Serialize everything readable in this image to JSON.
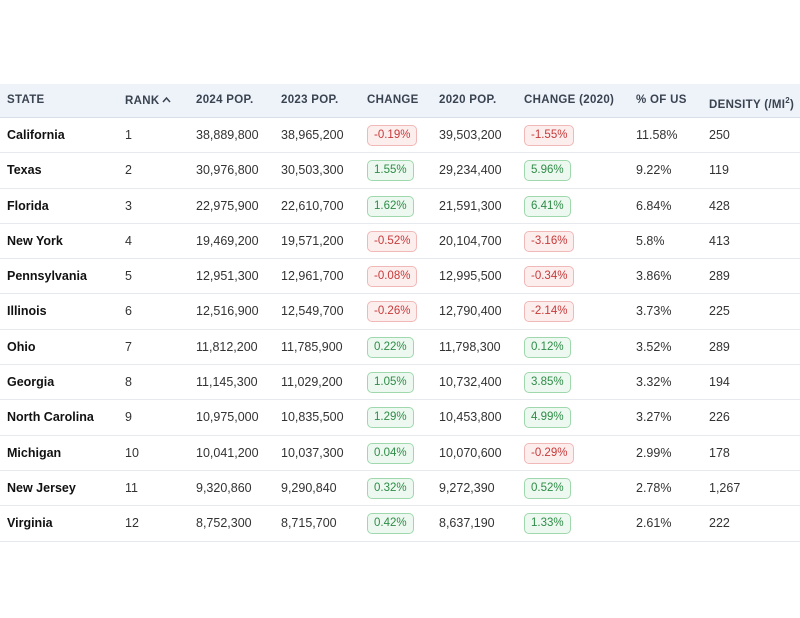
{
  "table": {
    "headers": {
      "state": "STATE",
      "rank": "RANK",
      "pop2024": "2024 POP.",
      "pop2023": "2023 POP.",
      "change": "CHANGE",
      "pop2020": "2020 POP.",
      "change2020": "CHANGE (2020)",
      "pct_us": "% OF US",
      "density": "DENSITY (/MI",
      "density_sup": "2",
      "density_close": ")"
    },
    "sort": {
      "column": "rank",
      "icon": "chevron-up-icon",
      "glyph": "^"
    },
    "colors": {
      "negative": "#c63a3a",
      "positive": "#2e8c47",
      "header_bg": "#eef3fa"
    },
    "rows": [
      {
        "state": "California",
        "rank": "1",
        "pop2024": "38,889,800",
        "pop2023": "38,965,200",
        "change": "-0.19%",
        "change_dir": "neg",
        "pop2020": "39,503,200",
        "change2020": "-1.55%",
        "change2020_dir": "neg",
        "pct_us": "11.58%",
        "density": "250"
      },
      {
        "state": "Texas",
        "rank": "2",
        "pop2024": "30,976,800",
        "pop2023": "30,503,300",
        "change": "1.55%",
        "change_dir": "pos",
        "pop2020": "29,234,400",
        "change2020": "5.96%",
        "change2020_dir": "pos",
        "pct_us": "9.22%",
        "density": "119"
      },
      {
        "state": "Florida",
        "rank": "3",
        "pop2024": "22,975,900",
        "pop2023": "22,610,700",
        "change": "1.62%",
        "change_dir": "pos",
        "pop2020": "21,591,300",
        "change2020": "6.41%",
        "change2020_dir": "pos",
        "pct_us": "6.84%",
        "density": "428"
      },
      {
        "state": "New York",
        "rank": "4",
        "pop2024": "19,469,200",
        "pop2023": "19,571,200",
        "change": "-0.52%",
        "change_dir": "neg",
        "pop2020": "20,104,700",
        "change2020": "-3.16%",
        "change2020_dir": "neg",
        "pct_us": "5.8%",
        "density": "413"
      },
      {
        "state": "Pennsylvania",
        "rank": "5",
        "pop2024": "12,951,300",
        "pop2023": "12,961,700",
        "change": "-0.08%",
        "change_dir": "neg",
        "pop2020": "12,995,500",
        "change2020": "-0.34%",
        "change2020_dir": "neg",
        "pct_us": "3.86%",
        "density": "289"
      },
      {
        "state": "Illinois",
        "rank": "6",
        "pop2024": "12,516,900",
        "pop2023": "12,549,700",
        "change": "-0.26%",
        "change_dir": "neg",
        "pop2020": "12,790,400",
        "change2020": "-2.14%",
        "change2020_dir": "neg",
        "pct_us": "3.73%",
        "density": "225"
      },
      {
        "state": "Ohio",
        "rank": "7",
        "pop2024": "11,812,200",
        "pop2023": "11,785,900",
        "change": "0.22%",
        "change_dir": "pos",
        "pop2020": "11,798,300",
        "change2020": "0.12%",
        "change2020_dir": "pos",
        "pct_us": "3.52%",
        "density": "289"
      },
      {
        "state": "Georgia",
        "rank": "8",
        "pop2024": "11,145,300",
        "pop2023": "11,029,200",
        "change": "1.05%",
        "change_dir": "pos",
        "pop2020": "10,732,400",
        "change2020": "3.85%",
        "change2020_dir": "pos",
        "pct_us": "3.32%",
        "density": "194"
      },
      {
        "state": "North Carolina",
        "rank": "9",
        "pop2024": "10,975,000",
        "pop2023": "10,835,500",
        "change": "1.29%",
        "change_dir": "pos",
        "pop2020": "10,453,800",
        "change2020": "4.99%",
        "change2020_dir": "pos",
        "pct_us": "3.27%",
        "density": "226"
      },
      {
        "state": "Michigan",
        "rank": "10",
        "pop2024": "10,041,200",
        "pop2023": "10,037,300",
        "change": "0.04%",
        "change_dir": "pos",
        "pop2020": "10,070,600",
        "change2020": "-0.29%",
        "change2020_dir": "neg",
        "pct_us": "2.99%",
        "density": "178"
      },
      {
        "state": "New Jersey",
        "rank": "11",
        "pop2024": "9,320,860",
        "pop2023": "9,290,840",
        "change": "0.32%",
        "change_dir": "pos",
        "pop2020": "9,272,390",
        "change2020": "0.52%",
        "change2020_dir": "pos",
        "pct_us": "2.78%",
        "density": "1,267"
      },
      {
        "state": "Virginia",
        "rank": "12",
        "pop2024": "8,752,300",
        "pop2023": "8,715,700",
        "change": "0.42%",
        "change_dir": "pos",
        "pop2020": "8,637,190",
        "change2020": "1.33%",
        "change2020_dir": "pos",
        "pct_us": "2.61%",
        "density": "222"
      }
    ]
  }
}
